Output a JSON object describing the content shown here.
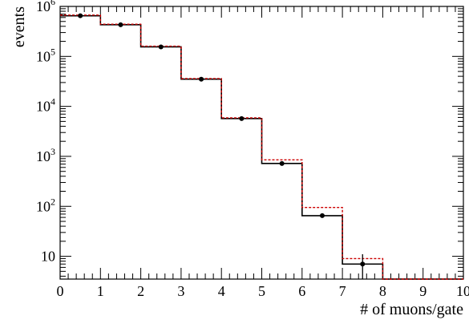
{
  "chart_data": {
    "type": "line",
    "title": "",
    "xlabel": "# of muons/gate",
    "ylabel": "events",
    "xlim": [
      0,
      10
    ],
    "ylim": [
      3.5,
      1000000
    ],
    "y_scale": "log",
    "grid": false,
    "x_ticks": [
      "0",
      "1",
      "2",
      "3",
      "4",
      "5",
      "6",
      "7",
      "8",
      "9",
      "10"
    ],
    "y_ticks": [
      {
        "value": 10,
        "base": "10",
        "exp": ""
      },
      {
        "value": 100,
        "base": "10",
        "exp": "2"
      },
      {
        "value": 1000,
        "base": "10",
        "exp": "3"
      },
      {
        "value": 10000,
        "base": "10",
        "exp": "4"
      },
      {
        "value": 100000,
        "base": "10",
        "exp": "5"
      },
      {
        "value": 1000000,
        "base": "10",
        "exp": "6"
      }
    ],
    "bin_edges": [
      0,
      1,
      2,
      3,
      4,
      5,
      6,
      7,
      8,
      9,
      10
    ],
    "series": [
      {
        "style": "solid-histogram",
        "color": "#000000",
        "values": [
          650000,
          430000,
          155000,
          35000,
          5700,
          720,
          65,
          7,
          3.5,
          3.5
        ]
      },
      {
        "style": "dashed-histogram",
        "color": "#cc0000",
        "values": [
          670000,
          440000,
          160000,
          36000,
          5900,
          850,
          95,
          9,
          3.5,
          3.5
        ]
      },
      {
        "style": "points",
        "color": "#000000",
        "x": [
          0.5,
          1.5,
          2.5,
          3.5,
          4.5,
          5.5,
          6.5,
          7.5
        ],
        "y": [
          650000,
          430000,
          155000,
          35000,
          5700,
          720,
          65,
          7
        ],
        "err_low": [
          0,
          0,
          0,
          0,
          0,
          0,
          0,
          4.5
        ],
        "err_high": [
          0,
          0,
          0,
          0,
          0,
          0,
          0,
          4
        ]
      }
    ]
  }
}
